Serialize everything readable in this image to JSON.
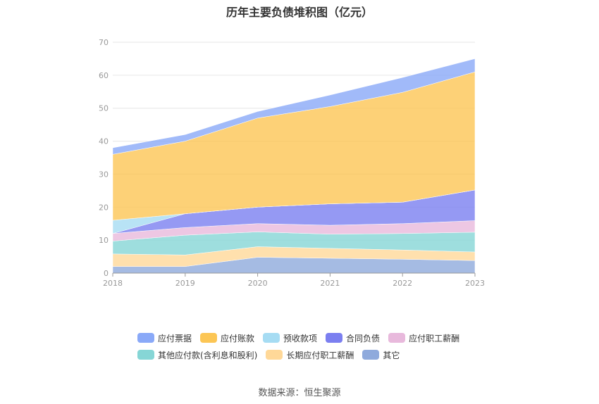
{
  "chart_data": {
    "type": "area",
    "stacked": true,
    "title": "历年主要负债堆积图（亿元）",
    "x": [
      "2018",
      "2019",
      "2020",
      "2021",
      "2022",
      "2023"
    ],
    "ylim": [
      0,
      70
    ],
    "yticks": [
      "0",
      "10",
      "20",
      "30",
      "40",
      "50",
      "60",
      "70"
    ],
    "grid": true,
    "legend_position": "bottom",
    "series": [
      {
        "name": "其它",
        "color": "#8faadc",
        "values": [
          2.0,
          2.0,
          4.8,
          4.5,
          4.2,
          3.8
        ]
      },
      {
        "name": "长期应付职工薪酬",
        "color": "#ffd898",
        "values": [
          3.8,
          3.5,
          3.2,
          3.0,
          2.8,
          2.6
        ]
      },
      {
        "name": "其他应付款(含利息和股利)",
        "color": "#86d6d6",
        "values": [
          3.9,
          6.0,
          4.5,
          4.3,
          5.0,
          6.0
        ]
      },
      {
        "name": "应付职工薪酬",
        "color": "#e8b9dc",
        "values": [
          2.3,
          2.3,
          2.5,
          2.7,
          3.0,
          3.5
        ]
      },
      {
        "name": "合同负债",
        "color": "#7b7ff0",
        "values": [
          0,
          4.2,
          5.0,
          6.5,
          6.5,
          9.3
        ]
      },
      {
        "name": "预收款项",
        "color": "#a6dcf3",
        "values": [
          4.0,
          0,
          0,
          0,
          0,
          0
        ]
      },
      {
        "name": "应付账款",
        "color": "#fcc655",
        "values": [
          20.0,
          22.0,
          27.0,
          29.5,
          33.3,
          35.8
        ]
      },
      {
        "name": "应付票据",
        "color": "#8aa9f8",
        "values": [
          2.0,
          2.0,
          2.0,
          3.5,
          4.5,
          4.0
        ]
      }
    ],
    "legend_order": [
      "应付票据",
      "应付账款",
      "预收款项",
      "合同负债",
      "应付职工薪酬",
      "其他应付款(含利息和股利)",
      "长期应付职工薪酬",
      "其它"
    ]
  },
  "source_text": "数据来源：恒生聚源"
}
